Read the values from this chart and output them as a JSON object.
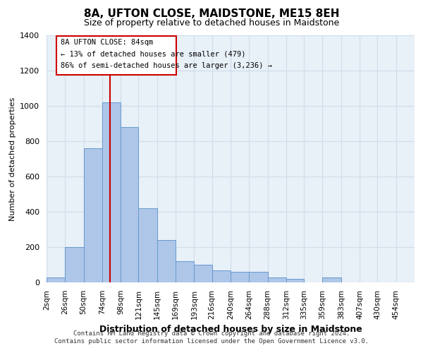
{
  "title1": "8A, UFTON CLOSE, MAIDSTONE, ME15 8EH",
  "title2": "Size of property relative to detached houses in Maidstone",
  "xlabel": "Distribution of detached houses by size in Maidstone",
  "ylabel": "Number of detached properties",
  "footnote1": "Contains HM Land Registry data © Crown copyright and database right 2024.",
  "footnote2": "Contains public sector information licensed under the Open Government Licence v3.0.",
  "annotation_title": "8A UFTON CLOSE: 84sqm",
  "annotation_line1": "← 13% of detached houses are smaller (479)",
  "annotation_line2": "86% of semi-detached houses are larger (3,236) →",
  "property_size": 84,
  "bin_edges": [
    2,
    26,
    50,
    74,
    98,
    121,
    145,
    169,
    193,
    216,
    240,
    264,
    288,
    312,
    335,
    359,
    383,
    407,
    430,
    454,
    478
  ],
  "bar_heights": [
    30,
    200,
    760,
    1020,
    880,
    420,
    240,
    120,
    100,
    70,
    60,
    60,
    30,
    20,
    0,
    30,
    0,
    0,
    0,
    0
  ],
  "bar_color": "#aec6e8",
  "bar_edge_color": "#6699cc",
  "grid_color": "#d0dde8",
  "bg_color": "#e8f0f8",
  "red_line_color": "#cc0000",
  "annotation_box_color": "#cc0000",
  "ylim": [
    0,
    1400
  ],
  "yticks": [
    0,
    200,
    400,
    600,
    800,
    1000,
    1200,
    1400
  ]
}
